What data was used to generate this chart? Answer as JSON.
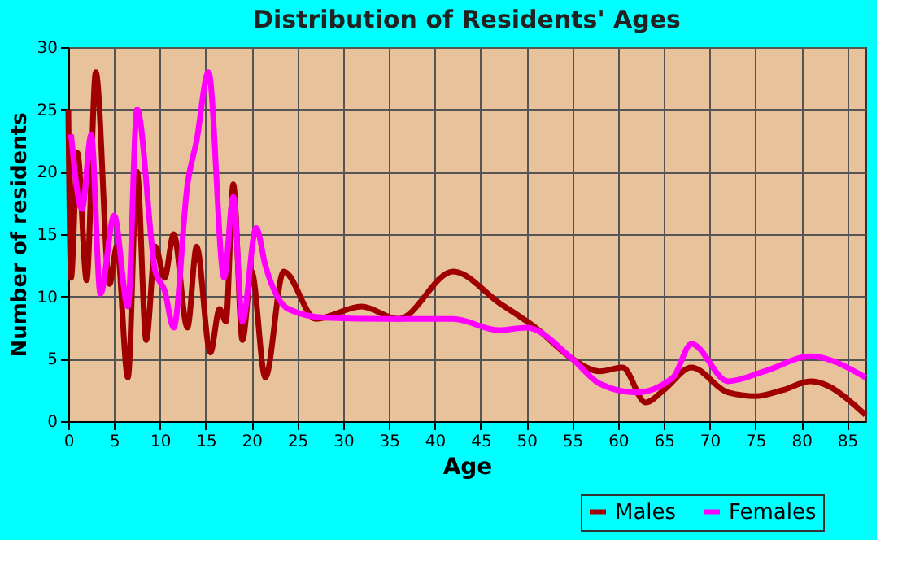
{
  "chart_data": {
    "type": "line",
    "title": "Distribution of Residents' Ages",
    "xlabel": "Age",
    "ylabel": "Number of residents",
    "xlim": [
      0,
      87
    ],
    "xticks": [
      0,
      5,
      10,
      15,
      20,
      25,
      30,
      35,
      40,
      45,
      50,
      55,
      60,
      65,
      70,
      75,
      80,
      85
    ],
    "ylim": [
      0,
      30
    ],
    "yticks": [
      0,
      5,
      10,
      15,
      20,
      25,
      30
    ],
    "grid": true,
    "legend": "bottom right",
    "line_style": "solid",
    "marker": "none",
    "series": [
      {
        "name": "Males",
        "color": "#a00000",
        "x": [
          0,
          0.3,
          1,
          2,
          3,
          4.5,
          5.3,
          6.5,
          7.5,
          8.5,
          9.5,
          10.5,
          11.5,
          13,
          14,
          15.5,
          16.5,
          17.2,
          18,
          19,
          20,
          21.5,
          23.5,
          27,
          32,
          36,
          42,
          47,
          51,
          55,
          58,
          60.5,
          63,
          65,
          68,
          72,
          75,
          78,
          81,
          87
        ],
        "values": [
          25,
          11.5,
          21.5,
          11.3,
          28,
          11,
          14,
          3.5,
          20,
          6.5,
          14,
          11.5,
          15,
          7.5,
          14,
          5.5,
          9,
          8,
          19,
          6.5,
          12,
          3.5,
          12,
          8.2,
          9.2,
          8.2,
          12,
          9.5,
          7.5,
          5,
          4,
          4.3,
          1.5,
          2.5,
          4.3,
          2.3,
          2,
          2.5,
          3.2,
          0.5
        ]
      },
      {
        "name": "Females",
        "color": "#ff00ff",
        "x": [
          0.3,
          1.5,
          2.5,
          3.5,
          5,
          6.5,
          7.5,
          9.5,
          10.5,
          11.5,
          13,
          14,
          15.3,
          17,
          18,
          19,
          20.5,
          21.5,
          24,
          28,
          35,
          42,
          47,
          50,
          55,
          58,
          62,
          66,
          68,
          72,
          76,
          81,
          87
        ],
        "values": [
          23,
          17,
          23,
          10.2,
          16.5,
          9.2,
          25,
          12,
          10.5,
          7.5,
          19,
          22.5,
          28,
          11.5,
          18,
          8,
          15.5,
          12.5,
          9,
          8.3,
          8.2,
          8.2,
          7.3,
          7.5,
          5,
          3,
          2.3,
          3.5,
          6.2,
          3.2,
          4,
          5.2,
          3.5
        ]
      }
    ]
  }
}
